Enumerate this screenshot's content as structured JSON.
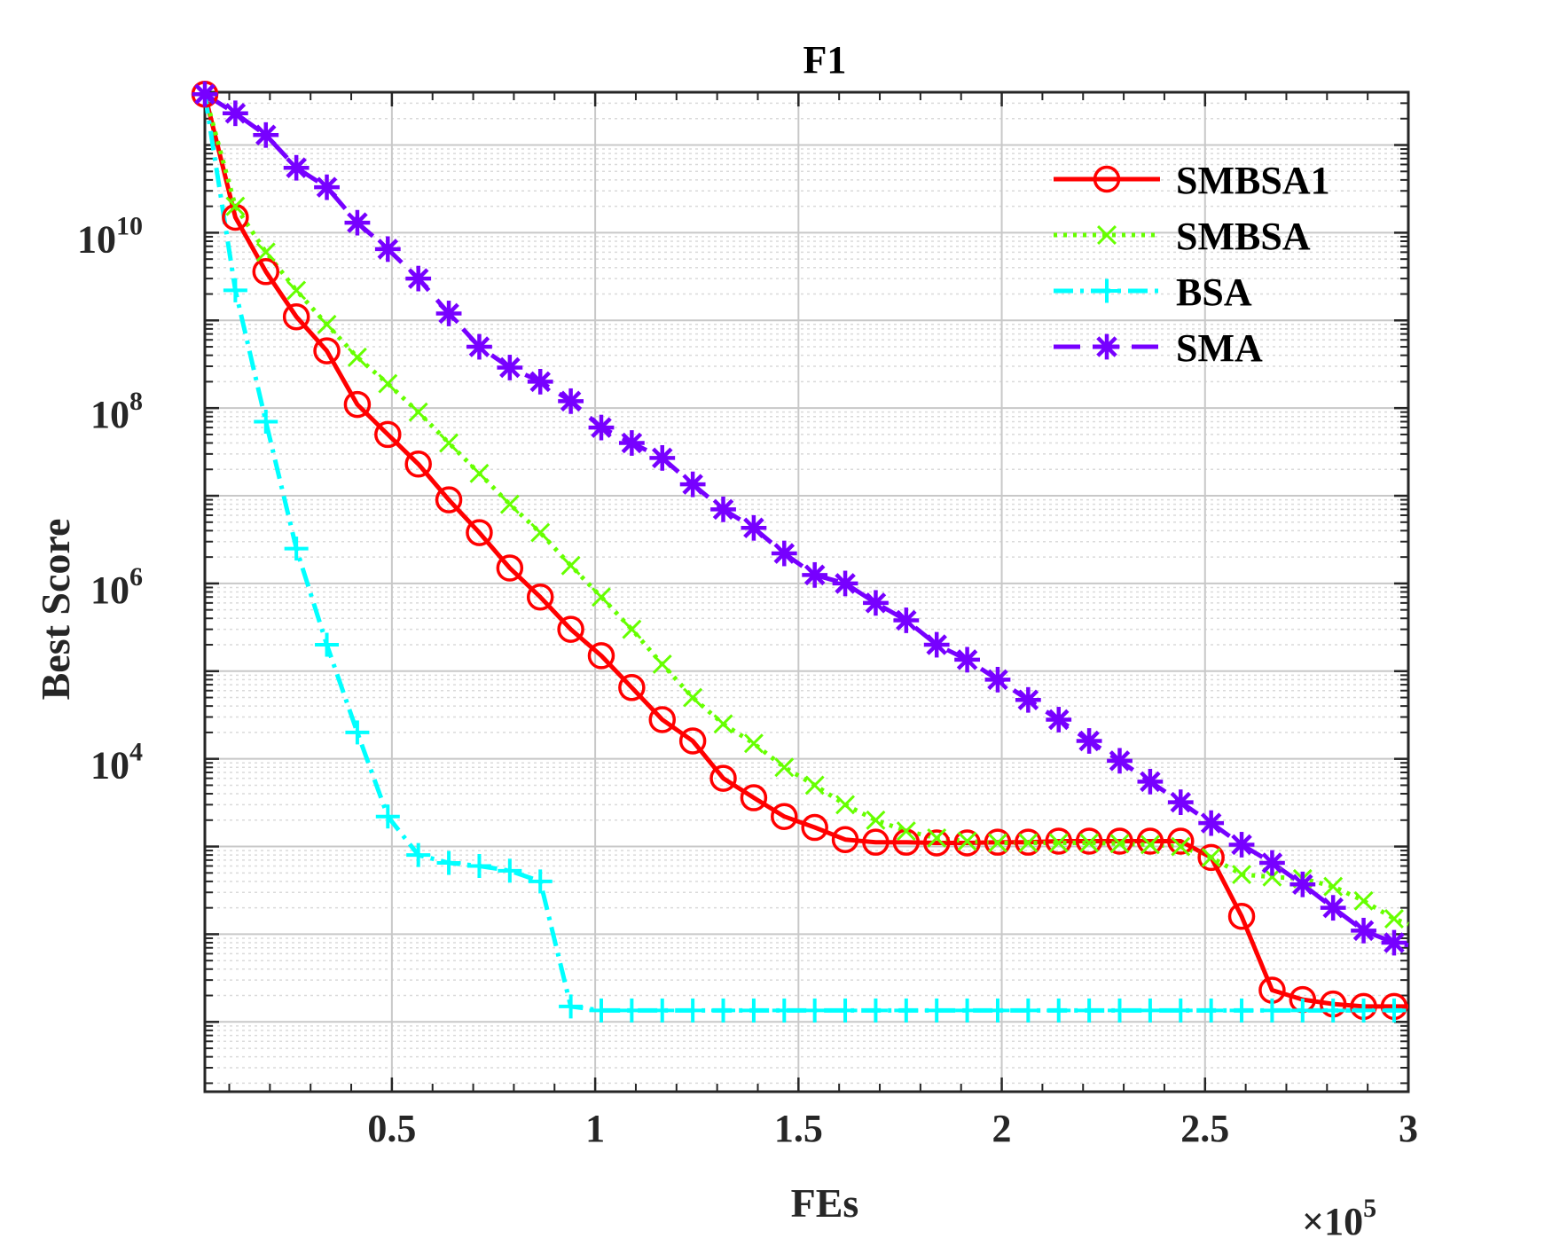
{
  "chart_data": {
    "type": "line",
    "title": "F1",
    "xlabel": "FEs",
    "ylabel": "Best Score",
    "x_multiplier_label": {
      "base": "×10",
      "exponent": "5"
    },
    "x_scale": "linear",
    "y_scale": "log",
    "xlim": [
      0.04,
      3.0
    ],
    "ylim": [
      1.6,
      400000000000.0
    ],
    "grid": true,
    "legend_position": "top-right",
    "x_ticks": [
      0.5,
      1,
      1.5,
      2,
      2.5,
      3
    ],
    "x_tick_labels": [
      "0.5",
      "1",
      "1.5",
      "2",
      "2.5",
      "3"
    ],
    "y_ticks": [
      {
        "value": 10000,
        "base": "10",
        "exponent": "4"
      },
      {
        "value": 1000000,
        "base": "10",
        "exponent": "6"
      },
      {
        "value": 100000000,
        "base": "10",
        "exponent": "8"
      },
      {
        "value": 10000000000,
        "base": "10",
        "exponent": "10"
      }
    ],
    "series": [
      {
        "name": "SMBSA1",
        "color": "#ff0000",
        "line_style": "solid",
        "marker": "circle",
        "points": [
          [
            0.04,
            380000000000.0
          ],
          [
            0.115,
            15000000000.0
          ],
          [
            0.19,
            3600000000.0
          ],
          [
            0.265,
            1100000000.0
          ],
          [
            0.34,
            450000000.0
          ],
          [
            0.415,
            110000000.0
          ],
          [
            0.49,
            50000000.0
          ],
          [
            0.565,
            23000000.0
          ],
          [
            0.64,
            9000000.0
          ],
          [
            0.715,
            3800000.0
          ],
          [
            0.79,
            1500000.0
          ],
          [
            0.865,
            700000.0
          ],
          [
            0.94,
            300000.0
          ],
          [
            1.015,
            150000.0
          ],
          [
            1.09,
            65000.0
          ],
          [
            1.165,
            28000.0
          ],
          [
            1.24,
            16000.0
          ],
          [
            1.315,
            6000.0
          ],
          [
            1.39,
            3600.0
          ],
          [
            1.465,
            2200.0
          ],
          [
            1.54,
            1650.0
          ],
          [
            1.615,
            1200.0
          ],
          [
            1.69,
            1120.0
          ],
          [
            1.765,
            1120.0
          ],
          [
            1.84,
            1100.0
          ],
          [
            1.915,
            1100.0
          ],
          [
            1.99,
            1120.0
          ],
          [
            2.065,
            1120.0
          ],
          [
            2.14,
            1150.0
          ],
          [
            2.215,
            1150.0
          ],
          [
            2.29,
            1150.0
          ],
          [
            2.365,
            1150.0
          ],
          [
            2.44,
            1150.0
          ],
          [
            2.515,
            750.0
          ],
          [
            2.59,
            160.0
          ],
          [
            2.665,
            23.0
          ],
          [
            2.74,
            18.0
          ],
          [
            2.815,
            16.0
          ],
          [
            2.89,
            15.0
          ],
          [
            2.965,
            15.0
          ],
          [
            3.0,
            15.0
          ]
        ]
      },
      {
        "name": "SMBSA",
        "color": "#66ff00",
        "line_style": "dotted",
        "marker": "x",
        "points": [
          [
            0.04,
            380000000000.0
          ],
          [
            0.115,
            20000000000.0
          ],
          [
            0.19,
            6000000000.0
          ],
          [
            0.265,
            2200000000.0
          ],
          [
            0.34,
            900000000.0
          ],
          [
            0.415,
            380000000.0
          ],
          [
            0.49,
            190000000.0
          ],
          [
            0.565,
            90000000.0
          ],
          [
            0.64,
            40000000.0
          ],
          [
            0.715,
            18000000.0
          ],
          [
            0.79,
            8000000.0
          ],
          [
            0.865,
            3800000.0
          ],
          [
            0.94,
            1600000.0
          ],
          [
            1.015,
            700000.0
          ],
          [
            1.09,
            300000.0
          ],
          [
            1.165,
            120000.0
          ],
          [
            1.24,
            50000.0
          ],
          [
            1.315,
            25000.0
          ],
          [
            1.39,
            15000.0
          ],
          [
            1.465,
            8000.0
          ],
          [
            1.54,
            5000.0
          ],
          [
            1.615,
            3000.0
          ],
          [
            1.69,
            2000.0
          ],
          [
            1.765,
            1500.0
          ],
          [
            1.84,
            1250.0
          ],
          [
            1.915,
            1150.0
          ],
          [
            1.99,
            1100.0
          ],
          [
            2.065,
            1100.0
          ],
          [
            2.14,
            1100.0
          ],
          [
            2.215,
            1100.0
          ],
          [
            2.29,
            1080.0
          ],
          [
            2.365,
            1050.0
          ],
          [
            2.44,
            1000.0
          ],
          [
            2.515,
            750.0
          ],
          [
            2.59,
            480.0
          ],
          [
            2.665,
            450.0
          ],
          [
            2.74,
            430.0
          ],
          [
            2.815,
            350.0
          ],
          [
            2.89,
            240.0
          ],
          [
            2.965,
            150.0
          ],
          [
            3.0,
            130.0
          ]
        ]
      },
      {
        "name": "BSA",
        "color": "#00ffff",
        "line_style": "dashdot",
        "marker": "plus",
        "points": [
          [
            0.04,
            380000000000.0
          ],
          [
            0.115,
            2200000000.0
          ],
          [
            0.19,
            70000000.0
          ],
          [
            0.265,
            2500000.0
          ],
          [
            0.34,
            200000.0
          ],
          [
            0.415,
            20000.0
          ],
          [
            0.49,
            2200.0
          ],
          [
            0.565,
            800.0
          ],
          [
            0.64,
            650.0
          ],
          [
            0.715,
            600.0
          ],
          [
            0.79,
            530.0
          ],
          [
            0.865,
            400.0
          ],
          [
            0.94,
            15.0
          ],
          [
            1.015,
            13.5
          ],
          [
            1.09,
            13.5
          ],
          [
            1.165,
            13.5
          ],
          [
            1.24,
            13.5
          ],
          [
            1.315,
            13.5
          ],
          [
            1.39,
            13.5
          ],
          [
            1.465,
            13.5
          ],
          [
            1.54,
            13.5
          ],
          [
            1.615,
            13.5
          ],
          [
            1.69,
            13.5
          ],
          [
            1.765,
            13.5
          ],
          [
            1.84,
            13.5
          ],
          [
            1.915,
            13.5
          ],
          [
            1.99,
            13.5
          ],
          [
            2.065,
            13.5
          ],
          [
            2.14,
            13.5
          ],
          [
            2.215,
            13.5
          ],
          [
            2.29,
            13.5
          ],
          [
            2.365,
            13.5
          ],
          [
            2.44,
            13.5
          ],
          [
            2.515,
            13.5
          ],
          [
            2.59,
            13.5
          ],
          [
            2.665,
            13.5
          ],
          [
            2.74,
            13.5
          ],
          [
            2.815,
            13.5
          ],
          [
            2.89,
            13.5
          ],
          [
            2.965,
            13.5
          ],
          [
            3.0,
            13.5
          ]
        ]
      },
      {
        "name": "SMA",
        "color": "#7700ff",
        "line_style": "dashed",
        "marker": "asterisk",
        "points": [
          [
            0.04,
            380000000000.0
          ],
          [
            0.115,
            230000000000.0
          ],
          [
            0.19,
            130000000000.0
          ],
          [
            0.265,
            55000000000.0
          ],
          [
            0.34,
            33000000000.0
          ],
          [
            0.415,
            13000000000.0
          ],
          [
            0.49,
            6500000000.0
          ],
          [
            0.565,
            3000000000.0
          ],
          [
            0.64,
            1200000000.0
          ],
          [
            0.715,
            500000000.0
          ],
          [
            0.79,
            290000000.0
          ],
          [
            0.865,
            200000000.0
          ],
          [
            0.94,
            120000000.0
          ],
          [
            1.015,
            60000000.0
          ],
          [
            1.09,
            40000000.0
          ],
          [
            1.165,
            27000000.0
          ],
          [
            1.24,
            13500000.0
          ],
          [
            1.315,
            7000000.0
          ],
          [
            1.39,
            4300000.0
          ],
          [
            1.465,
            2200000.0
          ],
          [
            1.54,
            1250000.0
          ],
          [
            1.615,
            1000000.0
          ],
          [
            1.69,
            600000.0
          ],
          [
            1.765,
            380000.0
          ],
          [
            1.84,
            200000.0
          ],
          [
            1.915,
            135000.0
          ],
          [
            1.99,
            80000.0
          ],
          [
            2.065,
            47000.0
          ],
          [
            2.14,
            28000.0
          ],
          [
            2.215,
            16000.0
          ],
          [
            2.29,
            9500.0
          ],
          [
            2.365,
            5500.0
          ],
          [
            2.44,
            3200.0
          ],
          [
            2.515,
            1850.0
          ],
          [
            2.59,
            1050.0
          ],
          [
            2.665,
            650.0
          ],
          [
            2.74,
            370.0
          ],
          [
            2.815,
            200.0
          ],
          [
            2.89,
            110.0
          ],
          [
            2.965,
            80.0
          ],
          [
            3.0,
            75.0
          ]
        ]
      }
    ]
  }
}
